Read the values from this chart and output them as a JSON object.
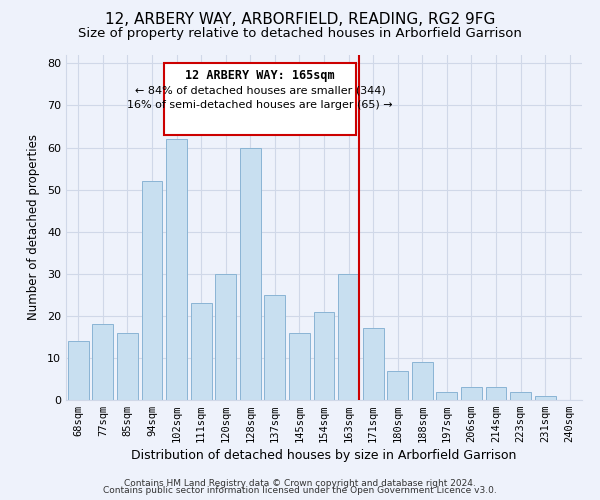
{
  "title": "12, ARBERY WAY, ARBORFIELD, READING, RG2 9FG",
  "subtitle": "Size of property relative to detached houses in Arborfield Garrison",
  "xlabel": "Distribution of detached houses by size in Arborfield Garrison",
  "ylabel": "Number of detached properties",
  "bar_labels": [
    "68sqm",
    "77sqm",
    "85sqm",
    "94sqm",
    "102sqm",
    "111sqm",
    "120sqm",
    "128sqm",
    "137sqm",
    "145sqm",
    "154sqm",
    "163sqm",
    "171sqm",
    "180sqm",
    "188sqm",
    "197sqm",
    "206sqm",
    "214sqm",
    "223sqm",
    "231sqm",
    "240sqm"
  ],
  "bar_values": [
    14,
    18,
    16,
    52,
    62,
    23,
    30,
    60,
    25,
    16,
    21,
    30,
    17,
    7,
    9,
    2,
    3,
    3,
    2,
    1,
    0
  ],
  "bar_color": "#c8dff0",
  "bar_edge_color": "#8ab4d4",
  "vline_color": "#cc0000",
  "annotation_title": "12 ARBERY WAY: 165sqm",
  "annotation_line1": "← 84% of detached houses are smaller (344)",
  "annotation_line2": "16% of semi-detached houses are larger (65) →",
  "annotation_box_color": "#ffffff",
  "annotation_box_edge": "#cc0000",
  "ylim": [
    0,
    82
  ],
  "footer_line1": "Contains HM Land Registry data © Crown copyright and database right 2024.",
  "footer_line2": "Contains public sector information licensed under the Open Government Licence v3.0.",
  "background_color": "#eef2fb",
  "title_fontsize": 11,
  "subtitle_fontsize": 9.5,
  "grid_color": "#d0d8e8"
}
